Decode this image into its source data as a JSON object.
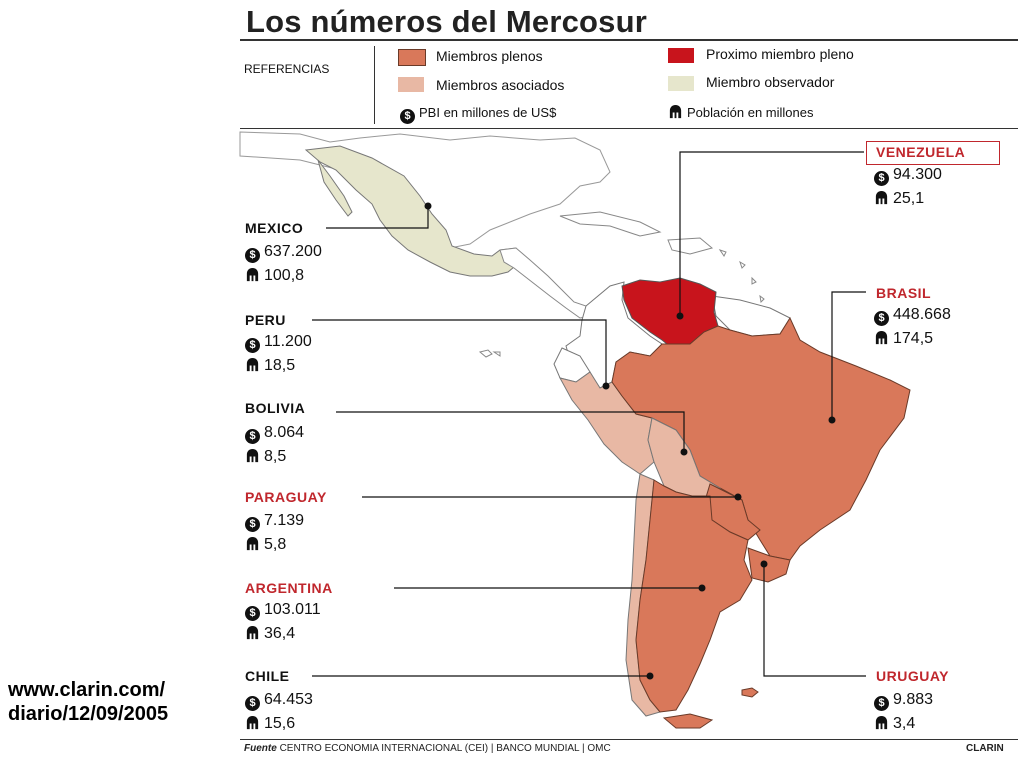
{
  "title": "Los números del Mercosur",
  "legend": {
    "ref_label": "REFERENCIAS",
    "items": {
      "full": "Miembros plenos",
      "associated": "Miembros asociados",
      "next_full": "Proximo miembro pleno",
      "observer": "Miembro observador",
      "gdp": "PBI en millones de US$",
      "population": "Población en millones"
    },
    "colors": {
      "full": "#d9785a",
      "associated": "#e8b8a4",
      "next_full": "#c8141c",
      "observer": "#e6e6cc"
    }
  },
  "countries": {
    "venezuela": {
      "name": "VENEZUELA",
      "gdp": "94.300",
      "population": "25,1"
    },
    "mexico": {
      "name": "MEXICO",
      "gdp": "637.200",
      "population": "100,8"
    },
    "brasil": {
      "name": "BRASIL",
      "gdp": "448.668",
      "population": "174,5"
    },
    "peru": {
      "name": "PERU",
      "gdp": "11.200",
      "population": "18,5"
    },
    "bolivia": {
      "name": "BOLIVIA",
      "gdp": "8.064",
      "population": "8,5"
    },
    "paraguay": {
      "name": "PARAGUAY",
      "gdp": "7.139",
      "population": "5,8"
    },
    "argentina": {
      "name": "ARGENTINA",
      "gdp": "103.011",
      "population": "36,4"
    },
    "chile": {
      "name": "CHILE",
      "gdp": "64.453",
      "population": "15,6"
    },
    "uruguay": {
      "name": "URUGUAY",
      "gdp": "9.883",
      "population": "3,4"
    }
  },
  "footer": {
    "source_label": "Fuente",
    "source_text": "CENTRO ECONOMIA INTERNACIONAL (CEI)  |  BANCO MUNDIAL  |  OMC",
    "brand": "CLARIN"
  },
  "url_line1": "www.clarin.com/",
  "url_line2": "diario/12/09/2005"
}
